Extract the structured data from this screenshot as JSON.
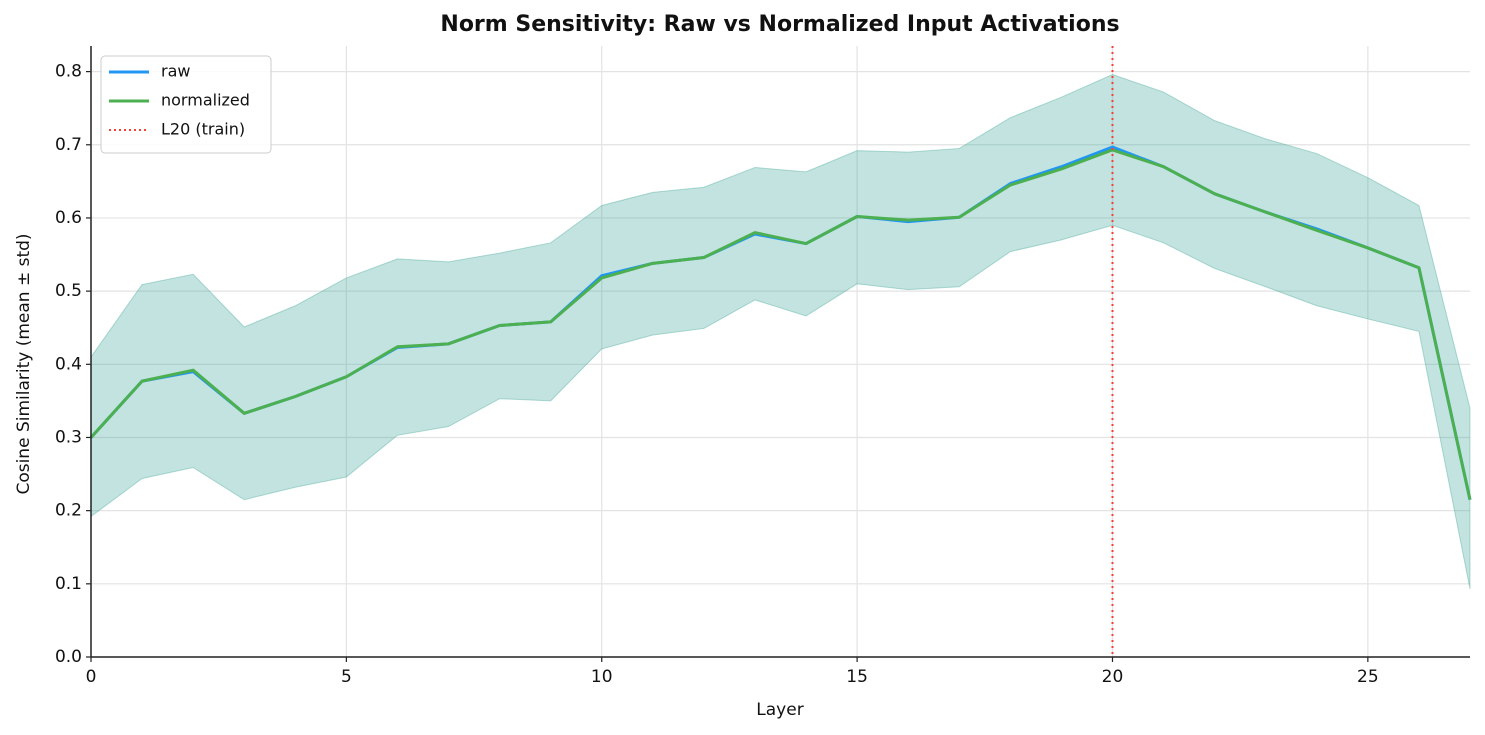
{
  "chart_data": {
    "type": "line",
    "title": "Norm Sensitivity: Raw vs Normalized Input Activations",
    "xlabel": "Layer",
    "ylabel": "Cosine Similarity (mean ± std)",
    "x": [
      0,
      1,
      2,
      3,
      4,
      5,
      6,
      7,
      8,
      9,
      10,
      11,
      12,
      13,
      14,
      15,
      16,
      17,
      18,
      19,
      20,
      21,
      22,
      23,
      24,
      25,
      26,
      27
    ],
    "series": [
      {
        "name": "raw",
        "color": "#2196f3",
        "values": [
          0.3,
          0.377,
          0.39,
          0.333,
          0.356,
          0.383,
          0.423,
          0.428,
          0.453,
          0.458,
          0.521,
          0.538,
          0.546,
          0.578,
          0.565,
          0.602,
          0.595,
          0.601,
          0.647,
          0.67,
          0.697,
          0.67,
          0.633,
          0.608,
          0.585,
          0.559,
          0.532,
          0.215
        ],
        "upper": [
          0.41,
          0.509,
          0.523,
          0.451,
          0.48,
          0.518,
          0.544,
          0.54,
          0.552,
          0.566,
          0.617,
          0.635,
          0.642,
          0.669,
          0.663,
          0.692,
          0.69,
          0.695,
          0.737,
          0.765,
          0.796,
          0.772,
          0.733,
          0.708,
          0.688,
          0.655,
          0.617,
          0.34
        ],
        "lower": [
          0.192,
          0.244,
          0.259,
          0.215,
          0.232,
          0.246,
          0.303,
          0.315,
          0.353,
          0.35,
          0.421,
          0.44,
          0.449,
          0.488,
          0.466,
          0.51,
          0.502,
          0.506,
          0.554,
          0.57,
          0.59,
          0.566,
          0.531,
          0.506,
          0.48,
          0.462,
          0.445,
          0.093
        ]
      },
      {
        "name": "normalized",
        "color": "#4caf50",
        "values": [
          0.3,
          0.377,
          0.392,
          0.333,
          0.356,
          0.383,
          0.424,
          0.428,
          0.453,
          0.458,
          0.518,
          0.538,
          0.546,
          0.58,
          0.565,
          0.602,
          0.597,
          0.601,
          0.645,
          0.667,
          0.693,
          0.67,
          0.633,
          0.608,
          0.583,
          0.559,
          0.532,
          0.215
        ],
        "upper": [
          0.41,
          0.509,
          0.523,
          0.451,
          0.48,
          0.518,
          0.544,
          0.54,
          0.552,
          0.566,
          0.617,
          0.635,
          0.642,
          0.669,
          0.663,
          0.692,
          0.69,
          0.695,
          0.737,
          0.765,
          0.796,
          0.772,
          0.733,
          0.708,
          0.688,
          0.655,
          0.617,
          0.34
        ],
        "lower": [
          0.192,
          0.244,
          0.259,
          0.215,
          0.232,
          0.246,
          0.303,
          0.315,
          0.353,
          0.35,
          0.421,
          0.44,
          0.449,
          0.488,
          0.466,
          0.51,
          0.502,
          0.506,
          0.554,
          0.57,
          0.59,
          0.566,
          0.531,
          0.506,
          0.48,
          0.462,
          0.445,
          0.093
        ]
      }
    ],
    "vlines": [
      {
        "x": 20,
        "name": "L20 (train)",
        "color": "#f44336"
      }
    ],
    "xlim": [
      0,
      27
    ],
    "xticks": [
      0,
      5,
      10,
      15,
      20,
      25
    ],
    "ylim": [
      0,
      0.835
    ],
    "yticks": [
      {
        "value": 0,
        "label": "0.0"
      },
      0.1,
      0.2,
      0.3,
      0.4,
      0.5,
      0.6,
      0.7,
      0.8
    ],
    "grid": true,
    "legend": "upper-left"
  }
}
